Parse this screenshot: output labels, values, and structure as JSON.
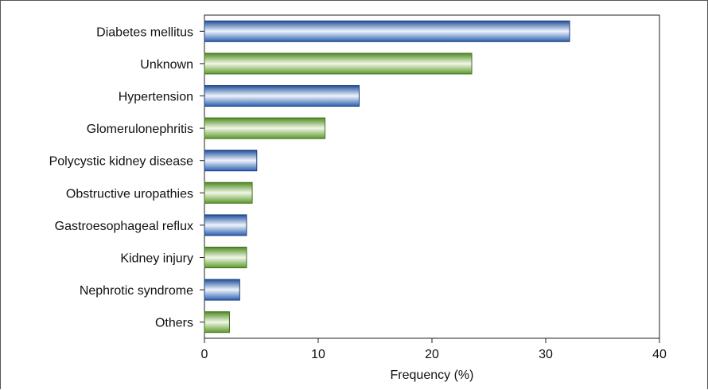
{
  "chart_data": {
    "type": "bar",
    "orientation": "horizontal",
    "categories": [
      "Diabetes mellitus",
      "Unknown",
      "Hypertension",
      "Glomerulonephritis",
      "Polycystic kidney disease",
      "Obstructive uropathies",
      "Gastroesophageal reflux",
      "Kidney injury",
      "Nephrotic syndrome",
      "Others"
    ],
    "values": [
      32.1,
      23.5,
      13.6,
      10.6,
      4.6,
      4.2,
      3.7,
      3.7,
      3.1,
      2.2
    ],
    "bar_colors": [
      "#2f66b8",
      "#5e9a2e",
      "#2f66b8",
      "#5e9a2e",
      "#2f66b8",
      "#5e9a2e",
      "#2f66b8",
      "#5e9a2e",
      "#2f66b8",
      "#5e9a2e"
    ],
    "xlabel": "Frequency (%)",
    "ylabel": "",
    "title": "",
    "xlim": [
      0,
      40
    ],
    "xticks": [
      "0",
      "10",
      "20",
      "30",
      "40"
    ],
    "grid": false,
    "legend": "none"
  }
}
